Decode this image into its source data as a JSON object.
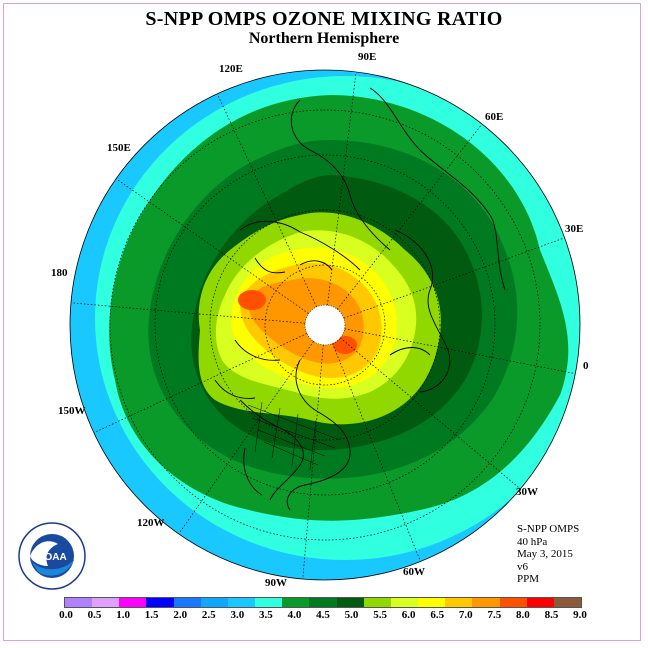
{
  "title": "S-NPP OMPS OZONE MIXING RATIO",
  "subtitle": "Northern Hemisphere",
  "longitude_labels": [
    {
      "text": "90E"
    },
    {
      "text": "60E"
    },
    {
      "text": "30E"
    },
    {
      "text": "0"
    },
    {
      "text": "30W"
    },
    {
      "text": "60W"
    },
    {
      "text": "90W"
    },
    {
      "text": "120W"
    },
    {
      "text": "150W"
    },
    {
      "text": "180"
    },
    {
      "text": "150E"
    },
    {
      "text": "120E"
    }
  ],
  "info": {
    "instrument": "S-NPP OMPS",
    "pressure": "40 hPa",
    "date": "May 3, 2015",
    "version": "v6",
    "units": "PPM"
  },
  "logo_text": "NOAA",
  "legend": {
    "ticks": [
      "0.0",
      "0.5",
      "1.0",
      "1.5",
      "2.0",
      "2.5",
      "3.0",
      "3.5",
      "4.0",
      "4.5",
      "5.0",
      "5.5",
      "6.0",
      "6.5",
      "7.0",
      "7.5",
      "8.0",
      "8.5",
      "9.0"
    ],
    "colors": [
      "#b080ff",
      "#e0a0ff",
      "#ff00ff",
      "#0000ff",
      "#1878ff",
      "#10a8ff",
      "#18c8ff",
      "#30ffe0",
      "#0a9a2a",
      "#007a20",
      "#005a10",
      "#90d800",
      "#d8ff20",
      "#ffff00",
      "#ffc800",
      "#ff9800",
      "#ff5000",
      "#ff0000",
      "#8a5a3a"
    ]
  }
}
